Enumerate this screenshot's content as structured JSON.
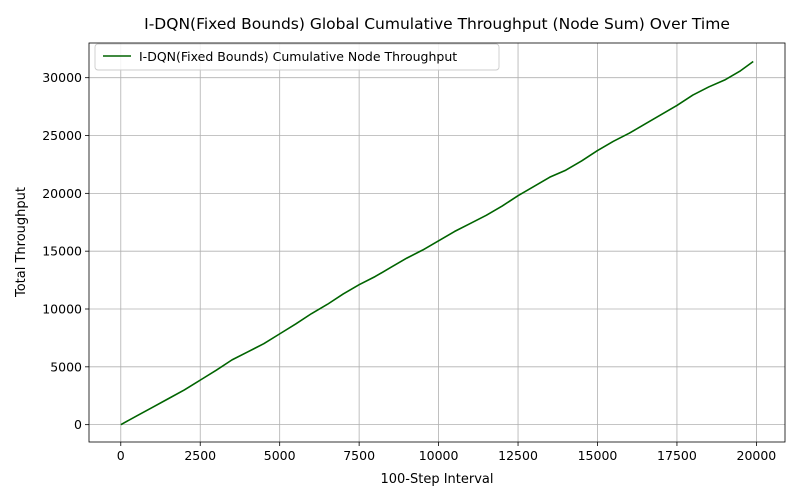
{
  "chart_data": {
    "type": "line",
    "title": "I-DQN(Fixed Bounds) Global Cumulative Throughput (Node Sum) Over Time",
    "xlabel": "100-Step Interval",
    "ylabel": "Total Throughput",
    "xlim": [
      -1000,
      20900
    ],
    "ylim": [
      -1500,
      33000
    ],
    "xticks": [
      0,
      2500,
      5000,
      7500,
      10000,
      12500,
      15000,
      17500,
      20000
    ],
    "yticks": [
      0,
      5000,
      10000,
      15000,
      20000,
      25000,
      30000
    ],
    "grid": true,
    "legend_position": "upper left",
    "series": [
      {
        "name": "I-DQN(Fixed Bounds) Cumulative Node Throughput",
        "color": "#006400",
        "x": [
          0,
          500,
          1000,
          1500,
          2000,
          2500,
          3000,
          3500,
          4000,
          4500,
          5000,
          5500,
          6000,
          6500,
          7000,
          7500,
          8000,
          8500,
          9000,
          9500,
          10000,
          10500,
          11000,
          11500,
          12000,
          12500,
          13000,
          13500,
          14000,
          14500,
          15000,
          15500,
          16000,
          16500,
          17000,
          17500,
          18000,
          18500,
          19000,
          19500,
          19900
        ],
        "y": [
          0,
          750,
          1500,
          2250,
          3000,
          3850,
          4700,
          5600,
          6300,
          7000,
          7850,
          8700,
          9600,
          10400,
          11300,
          12100,
          12800,
          13600,
          14400,
          15100,
          15900,
          16700,
          17400,
          18100,
          18900,
          19800,
          20600,
          21400,
          22000,
          22800,
          23700,
          24500,
          25200,
          26000,
          26800,
          27600,
          28500,
          29200,
          29800,
          30600,
          31400
        ]
      }
    ]
  }
}
